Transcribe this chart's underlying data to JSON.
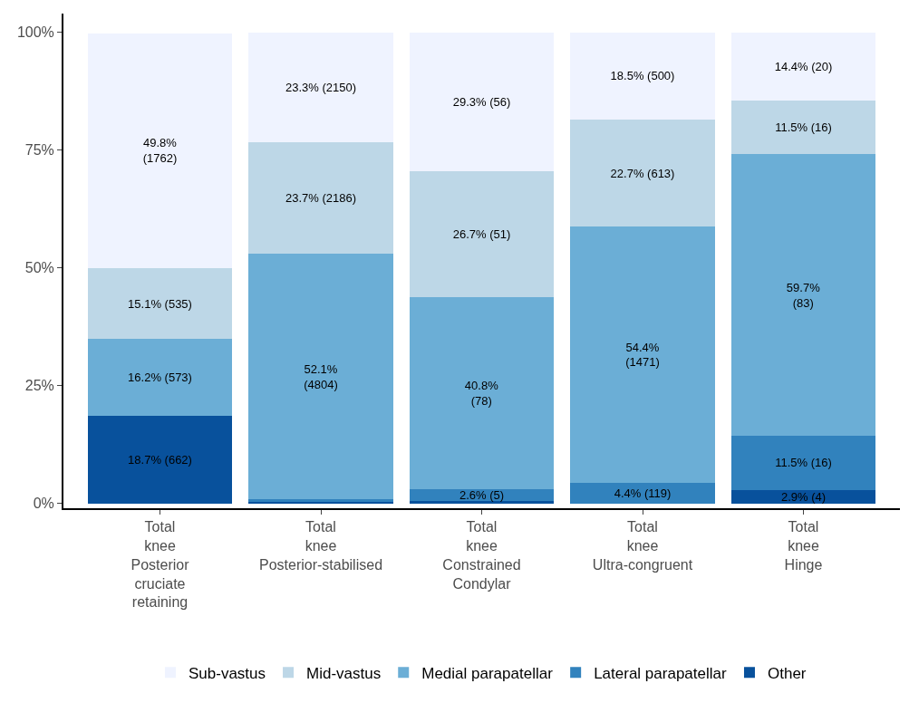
{
  "chart_data": {
    "type": "bar",
    "stacked": true,
    "categories": [
      "Total\nknee\nPosterior\ncruciate\nretaining",
      "Total\nknee\nPosterior-stabilised",
      "Total\nknee\nConstrained\nCondylar",
      "Total\nknee\nUltra-congruent",
      "Total\nknee\nHinge"
    ],
    "series": [
      {
        "name": "Other",
        "color": "#08519c",
        "values": [
          18.7,
          0.3,
          0.5,
          0,
          2.9
        ],
        "value_labels": [
          "18.7% (662)",
          null,
          null,
          null,
          "2.9% (4)"
        ]
      },
      {
        "name": "Lateral parapatellar",
        "color": "#3182bd",
        "values": [
          0,
          0.6,
          2.6,
          4.4,
          11.5
        ],
        "value_labels": [
          null,
          null,
          "2.6% (5)",
          "4.4% (119)",
          "11.5% (16)"
        ]
      },
      {
        "name": "Medial parapatellar",
        "color": "#6baed6",
        "values": [
          16.2,
          52.1,
          40.8,
          54.4,
          59.7
        ],
        "value_labels": [
          "16.2% (573)",
          "52.1%\n(4804)",
          "40.8%\n(78)",
          "54.4%\n(1471)",
          "59.7%\n(83)"
        ]
      },
      {
        "name": "Mid-vastus",
        "color": "#bdd7e7",
        "values": [
          15.1,
          23.7,
          26.7,
          22.7,
          11.5
        ],
        "value_labels": [
          "15.1% (535)",
          "23.7% (2186)",
          "26.7% (51)",
          "22.7% (613)",
          "11.5% (16)"
        ]
      },
      {
        "name": "Sub-vastus",
        "color": "#eff3ff",
        "values": [
          49.8,
          23.3,
          29.3,
          18.5,
          14.4
        ],
        "value_labels": [
          "49.8%\n(1762)",
          "23.3% (2150)",
          "29.3% (56)",
          "18.5% (500)",
          "14.4% (20)"
        ]
      }
    ],
    "ylim": [
      -1,
      104
    ],
    "yticks": [
      {
        "value": 0,
        "label": "0%"
      },
      {
        "value": 25,
        "label": "25%"
      },
      {
        "value": 50,
        "label": "50%"
      },
      {
        "value": 75,
        "label": "75%"
      },
      {
        "value": 100,
        "label": "100%"
      }
    ],
    "legend": "bottom"
  }
}
